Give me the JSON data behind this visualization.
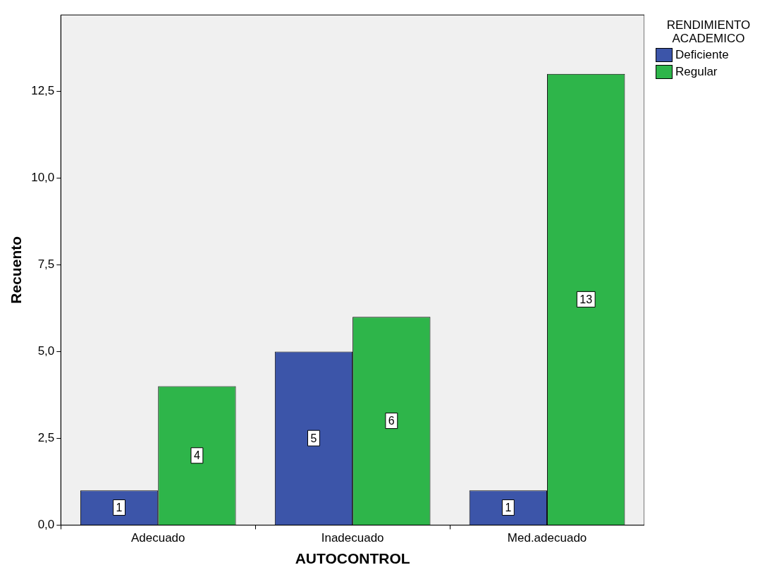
{
  "chart_data": {
    "type": "bar",
    "xlabel": "AUTOCONTROL",
    "ylabel": "Recuento",
    "legend_title": "RENDIMIENTO ACADEMICO",
    "categories": [
      "Adecuado",
      "Inadecuado",
      "Med.adecuado"
    ],
    "series": [
      {
        "name": "Deficiente",
        "color": "#3c55a9",
        "values": [
          1,
          5,
          1
        ]
      },
      {
        "name": "Regular",
        "color": "#2eb54a",
        "values": [
          4,
          6,
          13
        ]
      }
    ],
    "ylim": [
      0,
      14.7
    ],
    "yticks": [
      {
        "value": 0,
        "label": "0,0"
      },
      {
        "value": 2.5,
        "label": "2,5"
      },
      {
        "value": 5,
        "label": "5,0"
      },
      {
        "value": 7.5,
        "label": "7,5"
      },
      {
        "value": 10,
        "label": "10,0"
      },
      {
        "value": 12.5,
        "label": "12,5"
      }
    ],
    "grid": false,
    "legend": "top right",
    "data_labels": true
  }
}
